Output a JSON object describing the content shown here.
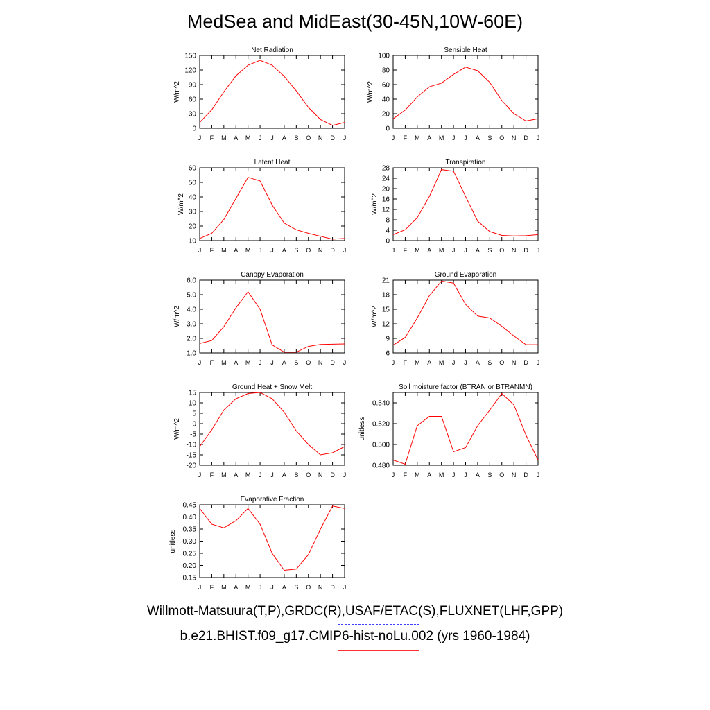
{
  "title": "MedSea and MidEast(30-45N,10W-60E)",
  "colors": {
    "model": "#ff0000",
    "observations": "#0000ff"
  },
  "legend": {
    "observations_label": "Willmott-Matsuura(T,P),GRDC(R),USAF/ETAC(S),FLUXNET(LHF,GPP)",
    "model_label": "b.e21.BHIST.f09_g17.CMIP6-hist-noLu.002 (yrs 1960-1984)"
  },
  "chart_data": [
    {
      "type": "line",
      "title": "Net Radiation",
      "ylabel": "W/m^2",
      "x": [
        "J",
        "F",
        "M",
        "A",
        "M",
        "J",
        "J",
        "A",
        "S",
        "O",
        "N",
        "D",
        "J"
      ],
      "ylim": [
        0,
        150
      ],
      "yticks": [
        "0",
        "30",
        "60",
        "90",
        "120",
        "150"
      ],
      "series": [
        {
          "values": [
            12,
            38,
            75,
            108,
            130,
            140,
            130,
            107,
            77,
            43,
            18,
            6,
            12
          ]
        }
      ]
    },
    {
      "type": "line",
      "title": "Sensible Heat",
      "ylabel": "W/m^2",
      "x": [
        "J",
        "F",
        "M",
        "A",
        "M",
        "J",
        "J",
        "A",
        "S",
        "O",
        "N",
        "D",
        "J"
      ],
      "ylim": [
        0,
        100
      ],
      "yticks": [
        "0",
        "20",
        "40",
        "60",
        "80",
        "100"
      ],
      "series": [
        {
          "values": [
            13,
            25,
            43,
            57,
            62,
            74,
            84,
            79,
            63,
            38,
            20,
            10,
            13
          ]
        }
      ]
    },
    {
      "type": "line",
      "title": "Latent Heat",
      "ylabel": "W/m^2",
      "x": [
        "J",
        "F",
        "M",
        "A",
        "M",
        "J",
        "J",
        "A",
        "S",
        "O",
        "N",
        "D",
        "J"
      ],
      "ylim": [
        10,
        60
      ],
      "yticks": [
        "10",
        "20",
        "30",
        "40",
        "50",
        "60"
      ],
      "series": [
        {
          "values": [
            11.5,
            15,
            24.5,
            39,
            53.5,
            51,
            34.5,
            22,
            17.5,
            15,
            13,
            11,
            11.5
          ]
        }
      ]
    },
    {
      "type": "line",
      "title": "Transpiration",
      "ylabel": "W/m^2",
      "x": [
        "J",
        "F",
        "M",
        "A",
        "M",
        "J",
        "J",
        "A",
        "S",
        "O",
        "N",
        "D",
        "J"
      ],
      "ylim": [
        0,
        28
      ],
      "yticks": [
        "0",
        "4",
        "8",
        "12",
        "16",
        "20",
        "24",
        "28"
      ],
      "series": [
        {
          "values": [
            2.3,
            4.2,
            8.8,
            17,
            27.3,
            26.7,
            17,
            7.5,
            3.5,
            2,
            1.8,
            1.9,
            2.3
          ]
        }
      ]
    },
    {
      "type": "line",
      "title": "Canopy Evaporation",
      "ylabel": "W/m^2",
      "x": [
        "J",
        "F",
        "M",
        "A",
        "M",
        "J",
        "J",
        "A",
        "S",
        "O",
        "N",
        "D",
        "J"
      ],
      "ylim": [
        1.0,
        6.0
      ],
      "yticks": [
        "1.0",
        "2.0",
        "3.0",
        "4.0",
        "5.0",
        "6.0"
      ],
      "series": [
        {
          "values": [
            1.65,
            1.85,
            2.8,
            4.1,
            5.2,
            4.0,
            1.55,
            1.05,
            1.05,
            1.45,
            1.58,
            1.6,
            1.62
          ]
        }
      ]
    },
    {
      "type": "line",
      "title": "Ground Evaporation",
      "ylabel": "W/m^2",
      "x": [
        "J",
        "F",
        "M",
        "A",
        "M",
        "J",
        "J",
        "A",
        "S",
        "O",
        "N",
        "D",
        "J"
      ],
      "ylim": [
        6,
        21
      ],
      "yticks": [
        "6",
        "9",
        "12",
        "15",
        "18",
        "21"
      ],
      "series": [
        {
          "values": [
            7.6,
            9.2,
            13.2,
            17.8,
            20.8,
            20.4,
            16.0,
            13.6,
            13.2,
            11.5,
            9.5,
            7.7,
            7.7
          ]
        }
      ]
    },
    {
      "type": "line",
      "title": "Ground Heat + Snow Melt",
      "ylabel": "W/m^2",
      "x": [
        "J",
        "F",
        "M",
        "A",
        "M",
        "J",
        "J",
        "A",
        "S",
        "O",
        "N",
        "D",
        "J"
      ],
      "ylim": [
        -20,
        15
      ],
      "yticks": [
        "-20",
        "-15",
        "-10",
        "-5",
        "0",
        "5",
        "10",
        "15"
      ],
      "series": [
        {
          "values": [
            -11,
            -3,
            6.5,
            12,
            14.5,
            15,
            12,
            5.5,
            -3.5,
            -10,
            -15,
            -14,
            -11
          ]
        }
      ]
    },
    {
      "type": "line",
      "title": "Soil moisture factor (BTRAN or BTRANMN)",
      "ylabel": "unitless",
      "x": [
        "J",
        "F",
        "M",
        "A",
        "M",
        "J",
        "J",
        "A",
        "S",
        "O",
        "N",
        "D",
        "J"
      ],
      "ylim": [
        0.48,
        0.55
      ],
      "yticks": [
        "0.480",
        "0.500",
        "0.520",
        "0.540"
      ],
      "series": [
        {
          "values": [
            0.485,
            0.481,
            0.518,
            0.527,
            0.527,
            0.493,
            0.497,
            0.518,
            0.533,
            0.549,
            0.538,
            0.509,
            0.485
          ]
        }
      ]
    },
    {
      "type": "line",
      "title": "Evaporative Fraction",
      "ylabel": "unitless",
      "x": [
        "J",
        "F",
        "M",
        "A",
        "M",
        "J",
        "J",
        "A",
        "S",
        "O",
        "N",
        "D",
        "J"
      ],
      "ylim": [
        0.15,
        0.45
      ],
      "yticks": [
        "0.15",
        "0.20",
        "0.25",
        "0.30",
        "0.35",
        "0.40",
        "0.45"
      ],
      "series": [
        {
          "values": [
            0.435,
            0.37,
            0.355,
            0.385,
            0.435,
            0.37,
            0.25,
            0.18,
            0.185,
            0.245,
            0.35,
            0.445,
            0.435
          ]
        }
      ]
    }
  ]
}
